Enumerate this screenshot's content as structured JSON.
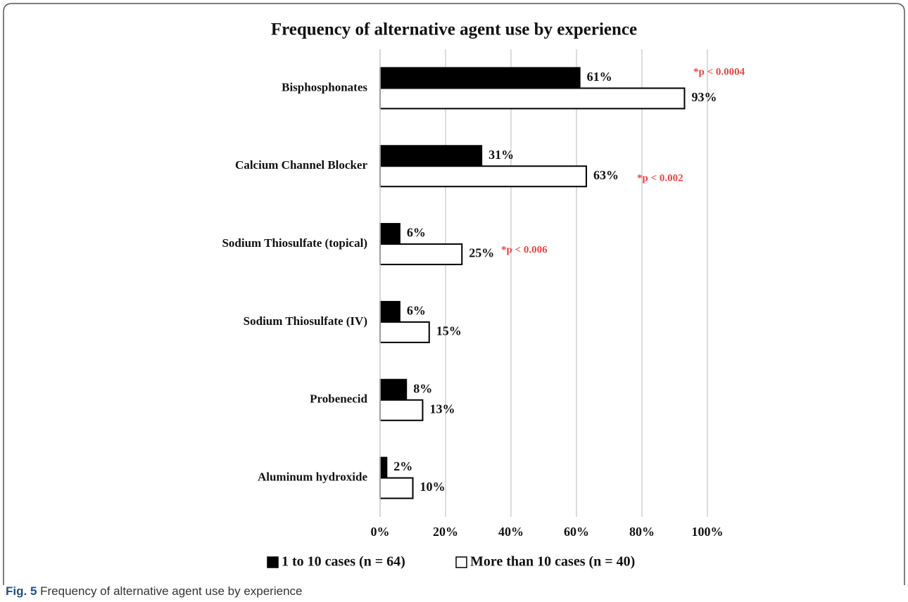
{
  "chart_data": {
    "type": "bar",
    "orientation": "horizontal",
    "title": "Frequency of alternative agent use by experience",
    "categories": [
      "Bisphosphonates",
      "Calcium Channel Blocker",
      "Sodium Thiosulfate (topical)",
      "Sodium Thiosulfate (IV)",
      "Probenecid",
      "Aluminum hydroxide"
    ],
    "series": [
      {
        "name": "1 to 10 cases (n = 64)",
        "color": "#000000",
        "values": [
          61,
          31,
          6,
          6,
          8,
          2
        ],
        "value_labels": [
          "61%",
          "31%",
          "6%",
          "6%",
          "8%",
          "2%"
        ]
      },
      {
        "name": "More than 10 cases (n = 40)",
        "color": "#ffffff",
        "values": [
          93,
          63,
          25,
          15,
          13,
          10
        ],
        "value_labels": [
          "93%",
          "63%",
          "25%",
          "15%",
          "13%",
          "10%"
        ]
      }
    ],
    "xlim": [
      0,
      100
    ],
    "xticks": [
      {
        "value": 0,
        "label": "0%"
      },
      {
        "value": 20,
        "label": "20%"
      },
      {
        "value": 40,
        "label": "40%"
      },
      {
        "value": 60,
        "label": "60%"
      },
      {
        "value": 80,
        "label": "80%"
      },
      {
        "value": 100,
        "label": "100%"
      }
    ],
    "grid": true,
    "legend": "bottom",
    "annotations": [
      "*p < 0.0004",
      "*p < 0.002",
      "*p < 0.006"
    ]
  },
  "caption": {
    "label": "Fig. 5",
    "text": "Frequency of alternative agent use by experience"
  }
}
